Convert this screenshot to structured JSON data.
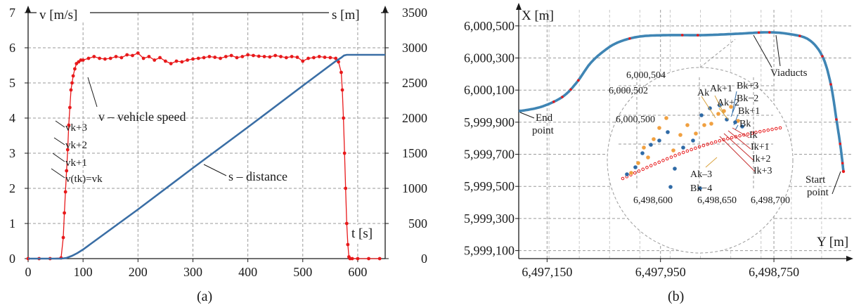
{
  "chart_data": [
    {
      "panel": "a",
      "type": "line",
      "caption": "(a)",
      "x_label": "t [s]",
      "y_left_label": "v [m/s]",
      "y_right_label": "s [m]",
      "xlim": [
        0,
        650
      ],
      "ylim_left": [
        0,
        7
      ],
      "ylim_right": [
        0,
        3500
      ],
      "x_ticks": [
        "0",
        "100",
        "200",
        "300",
        "400",
        "500",
        "600"
      ],
      "y_left_ticks": [
        "0",
        "1",
        "2",
        "3",
        "4",
        "5",
        "6",
        "7"
      ],
      "y_right_ticks": [
        "0",
        "500",
        "1000",
        "1500",
        "2000",
        "2500",
        "3000",
        "3500"
      ],
      "series": [
        {
          "color": "#e8191b",
          "axis": "left",
          "x": [
            0,
            20,
            40,
            60,
            64,
            66,
            68,
            70,
            72,
            74,
            76,
            78,
            80,
            82,
            85,
            88,
            92,
            96,
            100,
            110,
            120,
            130,
            140,
            150,
            160,
            170,
            180,
            190,
            200,
            210,
            220,
            230,
            240,
            250,
            260,
            270,
            280,
            290,
            300,
            310,
            320,
            330,
            340,
            350,
            360,
            370,
            380,
            390,
            400,
            410,
            420,
            430,
            440,
            450,
            460,
            470,
            480,
            490,
            500,
            510,
            520,
            530,
            540,
            550,
            560,
            565,
            570,
            572,
            574,
            576,
            578,
            580,
            582,
            584,
            586,
            590,
            600,
            620,
            640
          ],
          "y": [
            0,
            0,
            0,
            0.02,
            0.6,
            1.3,
            1.9,
            2.5,
            3.1,
            3.8,
            4.3,
            4.8,
            5.0,
            5.2,
            5.4,
            5.55,
            5.6,
            5.65,
            5.65,
            5.7,
            5.75,
            5.7,
            5.68,
            5.7,
            5.75,
            5.72,
            5.8,
            5.78,
            5.85,
            5.7,
            5.75,
            5.65,
            5.72,
            5.62,
            5.55,
            5.62,
            5.6,
            5.65,
            5.68,
            5.7,
            5.72,
            5.75,
            5.73,
            5.7,
            5.75,
            5.78,
            5.72,
            5.75,
            5.8,
            5.78,
            5.76,
            5.75,
            5.74,
            5.78,
            5.75,
            5.72,
            5.75,
            5.73,
            5.62,
            5.7,
            5.72,
            5.75,
            5.73,
            5.72,
            5.7,
            5.6,
            5.3,
            4.8,
            4.0,
            3.0,
            2.0,
            1.0,
            0.4,
            0.05,
            0,
            0,
            0,
            0,
            0
          ]
        },
        {
          "color": "#3a6ea5",
          "axis": "right",
          "x": [
            0,
            60,
            70,
            80,
            90,
            100,
            200,
            300,
            400,
            500,
            560,
            570,
            575,
            580,
            600,
            650
          ],
          "y": [
            0,
            0,
            10,
            40,
            80,
            130,
            700,
            1290,
            1870,
            2460,
            2810,
            2860,
            2890,
            2900,
            2900,
            2900
          ]
        }
      ],
      "annotations": {
        "speed": "v – vehicle speed",
        "distance": "s – distance",
        "vk3": "vk+3",
        "vk2": "vk+2",
        "vk1": "vk+1",
        "vtk": "v(tk)=vk"
      }
    },
    {
      "panel": "b",
      "type": "scatter",
      "caption": "(b)",
      "x_label": "Y [m]",
      "y_label": "X [m]",
      "xlim": [
        6496950,
        6499300
      ],
      "ylim": [
        5999050,
        6000600
      ],
      "x_ticks": [
        "6,497,150",
        "6,497,950",
        "6,498,750"
      ],
      "y_ticks": [
        "5,999,100",
        "5,999,300",
        "5,999,500",
        "5,999,700",
        "5,999,900",
        "6,000,100",
        "6,000,300",
        "6,000,500"
      ],
      "track_color": "#3f85b4",
      "highlight_color": "#e8191b",
      "annotations": {
        "end": [
          "End",
          "point"
        ],
        "start": [
          "Start",
          "point"
        ],
        "viaducts": "Viaducts"
      },
      "inset": {
        "x_ticks": [
          "6,498,600",
          "6,498,650",
          "6,498,700"
        ],
        "y_ticks": [
          "6,000,500",
          "6,000,502",
          "6,000,504"
        ],
        "labels": {
          "ak1": "Ak+1",
          "ak2": "Ak+2",
          "ak": "Ak",
          "bk3": "Bk+3",
          "bk2": "Bk−2",
          "bk1": "Bk+1",
          "bk": "Bk",
          "ik": "Ik",
          "ik1": "Ik+1",
          "ik2": "Ik+2",
          "ik3": "Ik+3",
          "ak3": "Ak–3",
          "bk4": "Bk−4"
        },
        "a_color": "#f0a040",
        "b_color": "#2f6aa6",
        "i_color": "#e8191b"
      }
    }
  ]
}
